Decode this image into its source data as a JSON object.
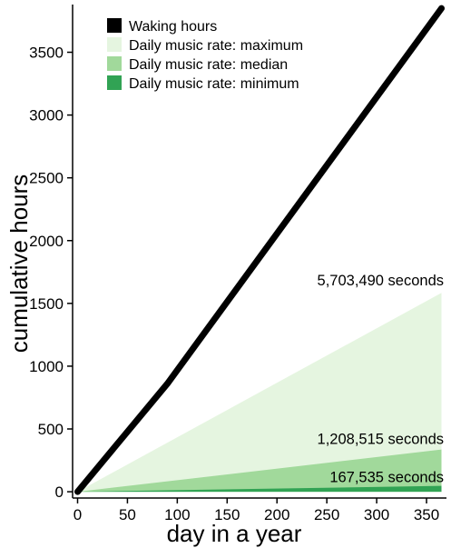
{
  "chart_data": {
    "type": "area",
    "xlabel": "day in a year",
    "ylabel": "cumulative hours",
    "xlim": [
      -5,
      370
    ],
    "ylim": [
      -50,
      3880
    ],
    "xticks": [
      0,
      50,
      100,
      150,
      200,
      250,
      300,
      350
    ],
    "yticks": [
      0,
      500,
      1000,
      1500,
      2000,
      2500,
      3000,
      3500
    ],
    "grid": false,
    "legend_position": "top-left",
    "series": [
      {
        "name": "Waking hours",
        "kind": "line",
        "color": "#000000",
        "x": [
          0,
          90,
          365
        ],
        "y": [
          0,
          860,
          3850
        ]
      },
      {
        "name": "Daily music rate: maximum",
        "kind": "area",
        "color": "#e5f5e0",
        "x": [
          0,
          365
        ],
        "y": [
          0,
          1584
        ]
      },
      {
        "name": "Daily music rate: median",
        "kind": "area",
        "color": "#a1d99b",
        "x": [
          0,
          365
        ],
        "y": [
          0,
          336
        ]
      },
      {
        "name": "Daily music rate: minimum",
        "kind": "area",
        "color": "#31a354",
        "x": [
          0,
          365
        ],
        "y": [
          0,
          46.5
        ]
      }
    ],
    "annotations": [
      {
        "text": "5,703,490 seconds",
        "x": 365,
        "y": 1584
      },
      {
        "text": "1,208,515 seconds",
        "x": 365,
        "y": 336
      },
      {
        "text": "167,535 seconds",
        "x": 365,
        "y": 46.5
      }
    ]
  }
}
